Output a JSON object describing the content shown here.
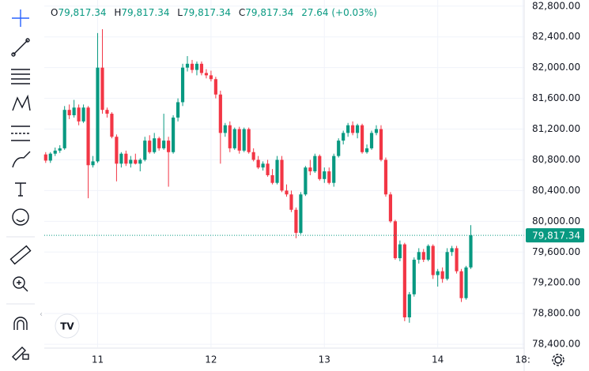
{
  "chart_data": {
    "type": "candlestick",
    "ohlc_legend": {
      "o_label": "O",
      "o": "79,817.34",
      "h_label": "H",
      "h": "79,817.34",
      "l_label": "L",
      "l": "79,817.34",
      "c_label": "C",
      "c": "79,817.34",
      "change": "27.64 (+0.03%)"
    },
    "up_color": "#089981",
    "down_color": "#f23645",
    "xlim": [
      12.7,
      114.3
    ],
    "xticks": [
      {
        "value": 24,
        "label": "11"
      },
      {
        "value": 48,
        "label": "12"
      },
      {
        "value": 72,
        "label": "13"
      },
      {
        "value": 96,
        "label": "14"
      },
      {
        "value": 114,
        "label": "18:"
      }
    ],
    "ylim": [
      78360,
      82880
    ],
    "yticks": [
      {
        "value": 78400,
        "label": "78,400.00"
      },
      {
        "value": 78800,
        "label": "78,800.00"
      },
      {
        "value": 79200,
        "label": "79,200.00"
      },
      {
        "value": 79600,
        "label": "79,600.00"
      },
      {
        "value": 80000,
        "label": "80,000.00"
      },
      {
        "value": 80400,
        "label": "80,400.00"
      },
      {
        "value": 80800,
        "label": "80,800.00"
      },
      {
        "value": 81200,
        "label": "81,200.00"
      },
      {
        "value": 81600,
        "label": "81,600.00"
      },
      {
        "value": 82000,
        "label": "82,000.00"
      },
      {
        "value": 82400,
        "label": "82,400.00"
      },
      {
        "value": 82800,
        "label": "82,800.00"
      }
    ],
    "grid": true,
    "last_price": {
      "value": 79817.34,
      "label": "79,817.34"
    },
    "x": [
      13,
      14,
      15,
      16,
      17,
      18,
      19,
      20,
      21,
      22,
      23,
      24,
      25,
      26,
      27,
      28,
      29,
      30,
      31,
      32,
      33,
      34,
      35,
      36,
      37,
      38,
      39,
      40,
      41,
      42,
      43,
      44,
      45,
      46,
      47,
      48,
      49,
      50,
      51,
      52,
      53,
      54,
      55,
      56,
      57,
      58,
      59,
      60,
      61,
      62,
      63,
      64,
      65,
      66,
      67,
      68,
      69,
      70,
      71,
      72,
      73,
      74,
      75,
      76,
      77,
      78,
      79,
      80,
      81,
      82,
      83,
      84,
      85,
      86,
      87,
      88,
      89,
      90,
      91,
      92,
      93,
      94,
      95,
      96,
      97,
      98,
      99,
      100,
      101,
      102,
      103
    ],
    "ohlc": [
      [
        80870,
        80900,
        80760,
        80790
      ],
      [
        80790,
        80900,
        80760,
        80880
      ],
      [
        80880,
        80960,
        80850,
        80920
      ],
      [
        80920,
        80990,
        80890,
        80950
      ],
      [
        80950,
        81500,
        80930,
        81450
      ],
      [
        81450,
        81520,
        81330,
        81380
      ],
      [
        81380,
        81580,
        81350,
        81480
      ],
      [
        81480,
        81520,
        81250,
        81300
      ],
      [
        81300,
        81520,
        81280,
        81480
      ],
      [
        81480,
        81500,
        80300,
        80730
      ],
      [
        80730,
        80850,
        80700,
        80780
      ],
      [
        80780,
        82450,
        80760,
        82000
      ],
      [
        82000,
        82500,
        81400,
        81450
      ],
      [
        81450,
        81480,
        81350,
        81400
      ],
      [
        81400,
        81420,
        81080,
        81100
      ],
      [
        81100,
        81130,
        80520,
        80750
      ],
      [
        80750,
        80900,
        80700,
        80880
      ],
      [
        80880,
        80920,
        80720,
        80750
      ],
      [
        80750,
        80850,
        80700,
        80800
      ],
      [
        80800,
        80880,
        80740,
        80750
      ],
      [
        80750,
        80820,
        80650,
        80800
      ],
      [
        80800,
        81100,
        80780,
        81050
      ],
      [
        81050,
        81120,
        80880,
        80900
      ],
      [
        80900,
        81150,
        80880,
        81080
      ],
      [
        81080,
        81100,
        80920,
        80950
      ],
      [
        80950,
        81400,
        80930,
        81050
      ],
      [
        81050,
        81100,
        80450,
        80900
      ],
      [
        80900,
        81380,
        80880,
        81350
      ],
      [
        81350,
        81600,
        81300,
        81550
      ],
      [
        81550,
        82050,
        81500,
        82000
      ],
      [
        82000,
        82150,
        81950,
        82050
      ],
      [
        82050,
        82100,
        81930,
        81970
      ],
      [
        81970,
        82080,
        81900,
        82050
      ],
      [
        82050,
        82080,
        81900,
        81930
      ],
      [
        81930,
        81980,
        81860,
        81900
      ],
      [
        81900,
        81960,
        81820,
        81850
      ],
      [
        81850,
        81880,
        81600,
        81650
      ],
      [
        81650,
        81700,
        80750,
        81150
      ],
      [
        81150,
        81280,
        81100,
        81250
      ],
      [
        81250,
        81300,
        80900,
        80950
      ],
      [
        80950,
        81220,
        80930,
        81200
      ],
      [
        81200,
        81230,
        80880,
        80920
      ],
      [
        80920,
        81220,
        80900,
        81200
      ],
      [
        81200,
        81220,
        80880,
        80900
      ],
      [
        80900,
        80950,
        80780,
        80800
      ],
      [
        80800,
        80850,
        80680,
        80700
      ],
      [
        80700,
        80780,
        80660,
        80750
      ],
      [
        80750,
        80800,
        80580,
        80600
      ],
      [
        80600,
        80680,
        80480,
        80500
      ],
      [
        80500,
        80850,
        80480,
        80800
      ],
      [
        80800,
        80850,
        80380,
        80400
      ],
      [
        80400,
        80480,
        80320,
        80350
      ],
      [
        80350,
        80400,
        80120,
        80150
      ],
      [
        80150,
        80180,
        79780,
        79850
      ],
      [
        79850,
        80380,
        79830,
        80350
      ],
      [
        80350,
        80720,
        80330,
        80700
      ],
      [
        80700,
        80800,
        80600,
        80650
      ],
      [
        80650,
        80880,
        80630,
        80850
      ],
      [
        80850,
        80870,
        80530,
        80550
      ],
      [
        80550,
        80700,
        80500,
        80650
      ],
      [
        80650,
        80700,
        80480,
        80500
      ],
      [
        80500,
        80880,
        80450,
        80850
      ],
      [
        80850,
        81080,
        80830,
        81050
      ],
      [
        81050,
        81180,
        81000,
        81150
      ],
      [
        81150,
        81280,
        81100,
        81250
      ],
      [
        81250,
        81300,
        81120,
        81150
      ],
      [
        81150,
        81270,
        81080,
        81250
      ],
      [
        81250,
        81270,
        80880,
        80900
      ],
      [
        80900,
        81000,
        80880,
        80950
      ],
      [
        80950,
        81180,
        80930,
        81150
      ],
      [
        81150,
        81250,
        81120,
        81200
      ],
      [
        81200,
        81250,
        80780,
        80800
      ],
      [
        80800,
        80830,
        80320,
        80350
      ],
      [
        80350,
        80380,
        79980,
        80000
      ],
      [
        80000,
        80020,
        79500,
        79520
      ],
      [
        79520,
        79750,
        79480,
        79700
      ],
      [
        79700,
        79720,
        78700,
        78750
      ],
      [
        78750,
        79080,
        78680,
        79050
      ],
      [
        79050,
        79530,
        79020,
        79500
      ],
      [
        79500,
        79650,
        79450,
        79600
      ],
      [
        79600,
        79640,
        79470,
        79500
      ],
      [
        79500,
        79700,
        79480,
        79680
      ],
      [
        79680,
        79700,
        79250,
        79300
      ],
      [
        79300,
        79380,
        79150,
        79350
      ],
      [
        79350,
        79400,
        79200,
        79250
      ],
      [
        79250,
        79650,
        79230,
        79600
      ],
      [
        79600,
        79680,
        79550,
        79650
      ],
      [
        79650,
        79680,
        79320,
        79350
      ],
      [
        79350,
        79380,
        78950,
        79000
      ],
      [
        79000,
        79420,
        78980,
        79400
      ],
      [
        79400,
        79950,
        79380,
        79817.34
      ]
    ]
  }
}
